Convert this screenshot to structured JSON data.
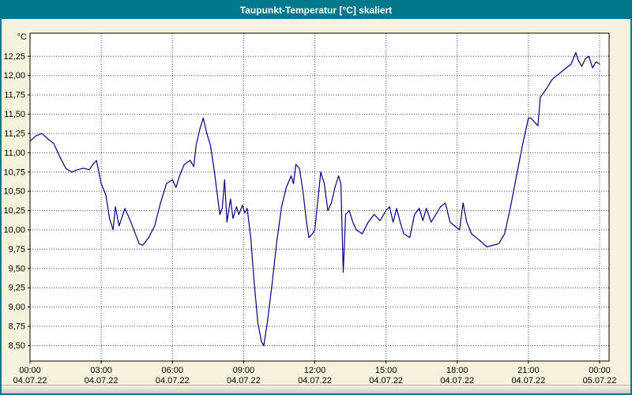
{
  "title_bar": {
    "text": "Taupunkt-Temperatur [°C] skaliert"
  },
  "colors": {
    "titlebar_bg": "#00788b",
    "titlebar_fg": "#ffffff",
    "page_bg": "#f6f1dd",
    "plot_bg": "#ffffff",
    "line": "#000080",
    "grid": "#444444",
    "border": "#000000"
  },
  "chart_data": {
    "type": "line",
    "title": "Taupunkt-Temperatur [°C] skaliert",
    "y_unit_label": "°C",
    "xlabel": "",
    "ylabel": "°C",
    "grid": "dotted",
    "legend": "none",
    "xlim": [
      0,
      24.4
    ],
    "ylim": [
      8.3,
      12.55
    ],
    "y_tick_values": [
      8.5,
      8.75,
      9.0,
      9.25,
      9.5,
      9.75,
      10.0,
      10.25,
      10.5,
      10.75,
      11.0,
      11.25,
      11.5,
      11.75,
      12.0,
      12.25
    ],
    "y_tick_labels": [
      "8,50",
      "8,75",
      "9,00",
      "9,25",
      "9,50",
      "9,75",
      "10,00",
      "10,25",
      "10,50",
      "10,75",
      "11,00",
      "11,25",
      "11,50",
      "11,75",
      "12,00",
      "12,25"
    ],
    "x_tick_values": [
      0,
      3,
      6,
      9,
      12,
      15,
      18,
      21,
      24
    ],
    "x_tick_labels": [
      "00:00",
      "03:00",
      "06:00",
      "09:00",
      "12:00",
      "15:00",
      "18:00",
      "21:00",
      "00:00"
    ],
    "x_tick_dates": [
      "04.07.22",
      "04.07.22",
      "04.07.22",
      "04.07.22",
      "04.07.22",
      "04.07.22",
      "04.07.22",
      "04.07.22",
      "05.07.22"
    ],
    "series": [
      {
        "name": "Taupunkt-Temperatur",
        "color": "#000080",
        "points": [
          [
            0,
            11.15
          ],
          [
            0.25,
            11.22
          ],
          [
            0.5,
            11.25
          ],
          [
            0.75,
            11.18
          ],
          [
            1,
            11.12
          ],
          [
            1.25,
            10.95
          ],
          [
            1.5,
            10.8
          ],
          [
            1.75,
            10.75
          ],
          [
            2,
            10.78
          ],
          [
            2.25,
            10.8
          ],
          [
            2.5,
            10.78
          ],
          [
            2.65,
            10.85
          ],
          [
            2.8,
            10.9
          ],
          [
            3,
            10.6
          ],
          [
            3.2,
            10.45
          ],
          [
            3.35,
            10.15
          ],
          [
            3.5,
            10.0
          ],
          [
            3.6,
            10.3
          ],
          [
            3.75,
            10.05
          ],
          [
            4,
            10.28
          ],
          [
            4.25,
            10.1
          ],
          [
            4.5,
            9.9
          ],
          [
            4.6,
            9.82
          ],
          [
            4.75,
            9.8
          ],
          [
            5,
            9.9
          ],
          [
            5.25,
            10.05
          ],
          [
            5.5,
            10.35
          ],
          [
            5.75,
            10.6
          ],
          [
            6,
            10.65
          ],
          [
            6.15,
            10.55
          ],
          [
            6.3,
            10.7
          ],
          [
            6.5,
            10.85
          ],
          [
            6.75,
            10.9
          ],
          [
            6.9,
            10.82
          ],
          [
            7,
            11.1
          ],
          [
            7.15,
            11.3
          ],
          [
            7.3,
            11.45
          ],
          [
            7.45,
            11.25
          ],
          [
            7.6,
            11.1
          ],
          [
            7.75,
            10.8
          ],
          [
            8,
            10.2
          ],
          [
            8.1,
            10.28
          ],
          [
            8.2,
            10.65
          ],
          [
            8.3,
            10.1
          ],
          [
            8.45,
            10.4
          ],
          [
            8.55,
            10.15
          ],
          [
            8.7,
            10.3
          ],
          [
            8.8,
            10.2
          ],
          [
            8.95,
            10.32
          ],
          [
            9.05,
            10.22
          ],
          [
            9.15,
            10.28
          ],
          [
            9.3,
            9.9
          ],
          [
            9.45,
            9.3
          ],
          [
            9.6,
            8.8
          ],
          [
            9.75,
            8.55
          ],
          [
            9.85,
            8.5
          ],
          [
            10,
            8.8
          ],
          [
            10.2,
            9.3
          ],
          [
            10.4,
            9.85
          ],
          [
            10.6,
            10.3
          ],
          [
            10.8,
            10.55
          ],
          [
            11,
            10.7
          ],
          [
            11.1,
            10.6
          ],
          [
            11.2,
            10.85
          ],
          [
            11.35,
            10.8
          ],
          [
            11.5,
            10.5
          ],
          [
            11.65,
            10.1
          ],
          [
            11.75,
            9.9
          ],
          [
            11.9,
            9.95
          ],
          [
            12,
            10.0
          ],
          [
            12.1,
            10.3
          ],
          [
            12.25,
            10.75
          ],
          [
            12.4,
            10.6
          ],
          [
            12.55,
            10.25
          ],
          [
            12.7,
            10.35
          ],
          [
            12.85,
            10.55
          ],
          [
            13,
            10.7
          ],
          [
            13.1,
            10.6
          ],
          [
            13.2,
            9.45
          ],
          [
            13.3,
            10.2
          ],
          [
            13.45,
            10.25
          ],
          [
            13.6,
            10.1
          ],
          [
            13.75,
            10.0
          ],
          [
            14,
            9.95
          ],
          [
            14.25,
            10.1
          ],
          [
            14.5,
            10.2
          ],
          [
            14.75,
            10.12
          ],
          [
            15,
            10.25
          ],
          [
            15.15,
            10.3
          ],
          [
            15.3,
            10.1
          ],
          [
            15.45,
            10.28
          ],
          [
            15.6,
            10.1
          ],
          [
            15.75,
            9.95
          ],
          [
            16,
            9.9
          ],
          [
            16.2,
            10.2
          ],
          [
            16.4,
            10.28
          ],
          [
            16.55,
            10.12
          ],
          [
            16.7,
            10.28
          ],
          [
            16.9,
            10.1
          ],
          [
            17.1,
            10.2
          ],
          [
            17.3,
            10.3
          ],
          [
            17.5,
            10.35
          ],
          [
            17.7,
            10.1
          ],
          [
            17.9,
            10.05
          ],
          [
            18.1,
            10.0
          ],
          [
            18.25,
            10.35
          ],
          [
            18.4,
            10.1
          ],
          [
            18.6,
            9.95
          ],
          [
            18.8,
            9.9
          ],
          [
            19,
            9.85
          ],
          [
            19.25,
            9.78
          ],
          [
            19.5,
            9.8
          ],
          [
            19.75,
            9.82
          ],
          [
            20,
            9.95
          ],
          [
            20.25,
            10.3
          ],
          [
            20.5,
            10.7
          ],
          [
            20.75,
            11.1
          ],
          [
            21,
            11.45
          ],
          [
            21.1,
            11.45
          ],
          [
            21.25,
            11.4
          ],
          [
            21.4,
            11.35
          ],
          [
            21.5,
            11.72
          ],
          [
            21.65,
            11.78
          ],
          [
            21.8,
            11.85
          ],
          [
            22,
            11.95
          ],
          [
            22.2,
            12.0
          ],
          [
            22.4,
            12.05
          ],
          [
            22.6,
            12.1
          ],
          [
            22.8,
            12.15
          ],
          [
            23,
            12.3
          ],
          [
            23.1,
            12.2
          ],
          [
            23.25,
            12.12
          ],
          [
            23.4,
            12.22
          ],
          [
            23.55,
            12.25
          ],
          [
            23.7,
            12.1
          ],
          [
            23.85,
            12.18
          ],
          [
            24,
            12.15
          ]
        ]
      }
    ]
  }
}
